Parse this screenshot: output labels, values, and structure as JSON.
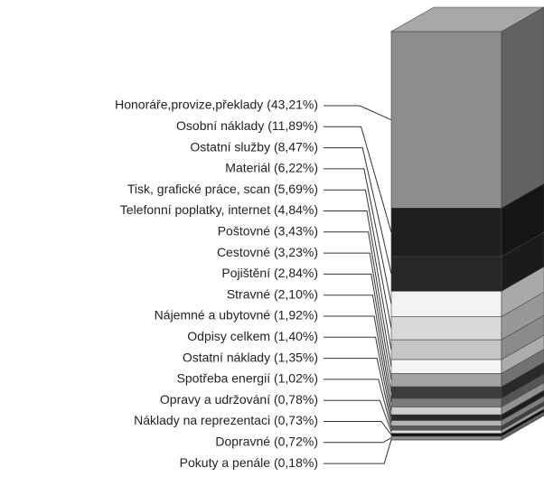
{
  "chart_data": {
    "type": "stacked-column-3d",
    "values": [
      43.21,
      11.89,
      8.47,
      6.22,
      5.69,
      4.84,
      3.43,
      3.23,
      2.84,
      2.1,
      1.92,
      1.4,
      1.35,
      1.02,
      0.78,
      0.73,
      0.72,
      0.18
    ],
    "value_labels": [
      "Honoráře,provize,překlady (43,21%)",
      "Osobní náklady (11,89%)",
      "Ostatní služby (8,47%)",
      "Materiál (6,22%)",
      "Tisk, grafické práce, scan (5,69%)",
      "Telefonní poplatky, internet (4,84%)",
      "Poštovné (3,43%)",
      "Cestovné (3,23%)",
      "Pojištění (2,84%)",
      "Stravné (2,10%)",
      "Nájemné a ubytovné (1,92%)",
      "Odpisy celkem (1,40%)",
      "Ostatní náklady (1,35%)",
      "Spotřeba energií (1,02%)",
      "Opravy a udržování (0,78%)",
      "Náklady na reprezentaci (0,73%)",
      "Dopravné (0,72%)",
      "Pokuty a penále (0,18%)"
    ],
    "colors": [
      "#8c8c8c",
      "#1e1e1e",
      "#262626",
      "#f2f2f2",
      "#d9d9d9",
      "#c6c6c6",
      "#f5f5f5",
      "#a3a3a3",
      "#3c3c3c",
      "#7a7a7a",
      "#cfcfcf",
      "#2a2a2a",
      "#b5b5b5",
      "#5a5a5a",
      "#e0e0e0",
      "#111111",
      "#909090",
      "#ffffff"
    ],
    "ylim": [
      0,
      100
    ]
  }
}
